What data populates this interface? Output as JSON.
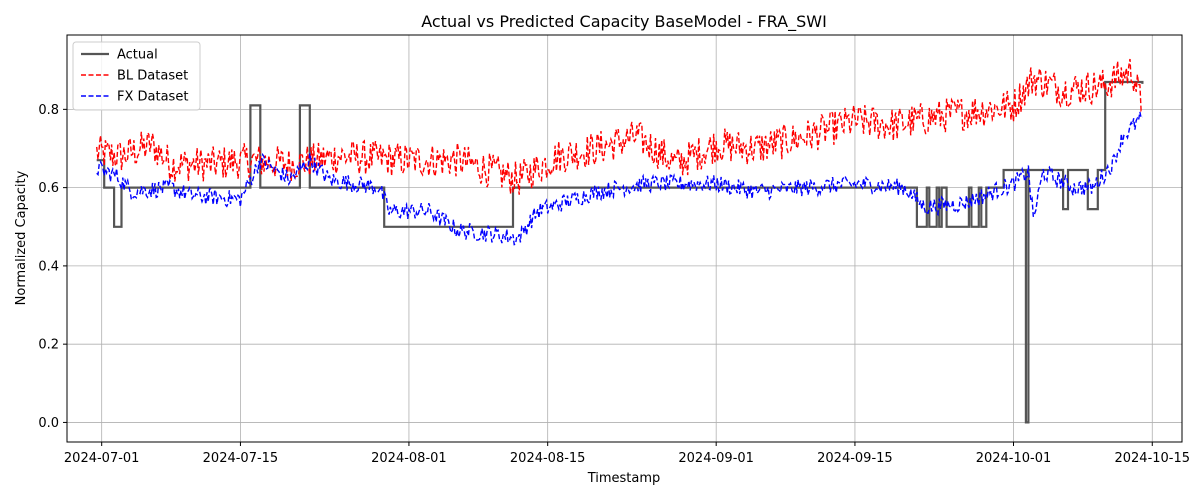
{
  "chart_data": {
    "type": "line",
    "title": "Actual vs Predicted Capacity BaseModel - FRA_SWI",
    "xlabel": "Timestamp",
    "ylabel": "Normalized Capacity",
    "xlim": [
      "2024-06-27T12:00",
      "2024-10-18T00:00"
    ],
    "ylim": [
      -0.05,
      0.99
    ],
    "xticks": [
      "2024-07-01",
      "2024-07-15",
      "2024-08-01",
      "2024-08-15",
      "2024-09-01",
      "2024-09-15",
      "2024-10-01",
      "2024-10-15"
    ],
    "yticks": [
      "0.0",
      "0.2",
      "0.4",
      "0.6",
      "0.8"
    ],
    "grid": true,
    "legend": "upper-left",
    "series": [
      {
        "name": "Actual",
        "color": "#555555",
        "style": "solid",
        "step": true,
        "points": [
          [
            "2024-06-30T12:00",
            0.67
          ],
          [
            "2024-07-01T06:00",
            0.6
          ],
          [
            "2024-07-02T06:00",
            0.5
          ],
          [
            "2024-07-03T00:00",
            0.6
          ],
          [
            "2024-07-16T00:00",
            0.81
          ],
          [
            "2024-07-17T00:00",
            0.6
          ],
          [
            "2024-07-21T00:00",
            0.81
          ],
          [
            "2024-07-22T00:00",
            0.6
          ],
          [
            "2024-07-29T12:00",
            0.5
          ],
          [
            "2024-08-11T12:00",
            0.6
          ],
          [
            "2024-09-21T06:00",
            0.5
          ],
          [
            "2024-09-22T06:00",
            0.6
          ],
          [
            "2024-09-22T12:00",
            0.5
          ],
          [
            "2024-09-23T06:00",
            0.6
          ],
          [
            "2024-09-23T12:00",
            0.5
          ],
          [
            "2024-09-23T18:00",
            0.6
          ],
          [
            "2024-09-24T06:00",
            0.5
          ],
          [
            "2024-09-26T12:00",
            0.6
          ],
          [
            "2024-09-26T18:00",
            0.5
          ],
          [
            "2024-09-27T12:00",
            0.6
          ],
          [
            "2024-09-27T18:00",
            0.5
          ],
          [
            "2024-09-28T06:00",
            0.6
          ],
          [
            "2024-09-30T00:00",
            0.645
          ],
          [
            "2024-10-02T06:00",
            0.0
          ],
          [
            "2024-10-02T12:00",
            0.645
          ],
          [
            "2024-10-06T00:00",
            0.545
          ],
          [
            "2024-10-06T12:00",
            0.645
          ],
          [
            "2024-10-08T12:00",
            0.545
          ],
          [
            "2024-10-09T12:00",
            0.645
          ],
          [
            "2024-10-10T06:00",
            0.87
          ],
          [
            "2024-10-14T00:00",
            0.865
          ]
        ]
      },
      {
        "name": "BL Dataset",
        "color": "#ff0000",
        "style": "dashed",
        "noisy": true,
        "amplitude": 0.045,
        "points": [
          [
            "2024-06-30T12:00",
            0.69
          ],
          [
            "2024-07-03T00:00",
            0.68
          ],
          [
            "2024-07-06T00:00",
            0.71
          ],
          [
            "2024-07-08T00:00",
            0.66
          ],
          [
            "2024-07-12T00:00",
            0.66
          ],
          [
            "2024-07-16T00:00",
            0.67
          ],
          [
            "2024-07-20T00:00",
            0.66
          ],
          [
            "2024-07-25T00:00",
            0.68
          ],
          [
            "2024-08-01T00:00",
            0.67
          ],
          [
            "2024-08-06T00:00",
            0.67
          ],
          [
            "2024-08-12T00:00",
            0.62
          ],
          [
            "2024-08-16T00:00",
            0.68
          ],
          [
            "2024-08-20T00:00",
            0.7
          ],
          [
            "2024-08-24T00:00",
            0.73
          ],
          [
            "2024-08-28T00:00",
            0.66
          ],
          [
            "2024-09-01T00:00",
            0.71
          ],
          [
            "2024-09-05T00:00",
            0.7
          ],
          [
            "2024-09-10T00:00",
            0.73
          ],
          [
            "2024-09-15T00:00",
            0.77
          ],
          [
            "2024-09-19T00:00",
            0.76
          ],
          [
            "2024-09-23T00:00",
            0.78
          ],
          [
            "2024-09-28T00:00",
            0.8
          ],
          [
            "2024-10-01T00:00",
            0.81
          ],
          [
            "2024-10-03T00:00",
            0.88
          ],
          [
            "2024-10-06T00:00",
            0.85
          ],
          [
            "2024-10-10T00:00",
            0.86
          ],
          [
            "2024-10-13T00:00",
            0.9
          ],
          [
            "2024-10-14T00:00",
            0.8
          ]
        ]
      },
      {
        "name": "FX Dataset",
        "color": "#0000ff",
        "style": "dashed",
        "noisy": true,
        "amplitude": 0.022,
        "points": [
          [
            "2024-06-30T12:00",
            0.65
          ],
          [
            "2024-07-02T12:00",
            0.63
          ],
          [
            "2024-07-04T00:00",
            0.59
          ],
          [
            "2024-07-08T00:00",
            0.6
          ],
          [
            "2024-07-10T00:00",
            0.58
          ],
          [
            "2024-07-15T00:00",
            0.57
          ],
          [
            "2024-07-17T00:00",
            0.67
          ],
          [
            "2024-07-20T00:00",
            0.62
          ],
          [
            "2024-07-22T00:00",
            0.67
          ],
          [
            "2024-07-24T00:00",
            0.62
          ],
          [
            "2024-07-29T00:00",
            0.6
          ],
          [
            "2024-07-30T00:00",
            0.54
          ],
          [
            "2024-08-03T00:00",
            0.54
          ],
          [
            "2024-08-06T00:00",
            0.49
          ],
          [
            "2024-08-10T00:00",
            0.48
          ],
          [
            "2024-08-12T00:00",
            0.47
          ],
          [
            "2024-08-14T00:00",
            0.54
          ],
          [
            "2024-08-20T00:00",
            0.59
          ],
          [
            "2024-08-25T00:00",
            0.61
          ],
          [
            "2024-09-01T00:00",
            0.61
          ],
          [
            "2024-09-05T00:00",
            0.59
          ],
          [
            "2024-09-10T00:00",
            0.6
          ],
          [
            "2024-09-15T00:00",
            0.61
          ],
          [
            "2024-09-20T00:00",
            0.6
          ],
          [
            "2024-09-22T00:00",
            0.55
          ],
          [
            "2024-09-26T00:00",
            0.56
          ],
          [
            "2024-09-28T00:00",
            0.58
          ],
          [
            "2024-10-01T00:00",
            0.61
          ],
          [
            "2024-10-02T12:00",
            0.64
          ],
          [
            "2024-10-03T00:00",
            0.52
          ],
          [
            "2024-10-04T00:00",
            0.64
          ],
          [
            "2024-10-07T00:00",
            0.6
          ],
          [
            "2024-10-09T00:00",
            0.6
          ],
          [
            "2024-10-11T00:00",
            0.66
          ],
          [
            "2024-10-12T00:00",
            0.73
          ],
          [
            "2024-10-14T00:00",
            0.78
          ]
        ]
      }
    ]
  }
}
